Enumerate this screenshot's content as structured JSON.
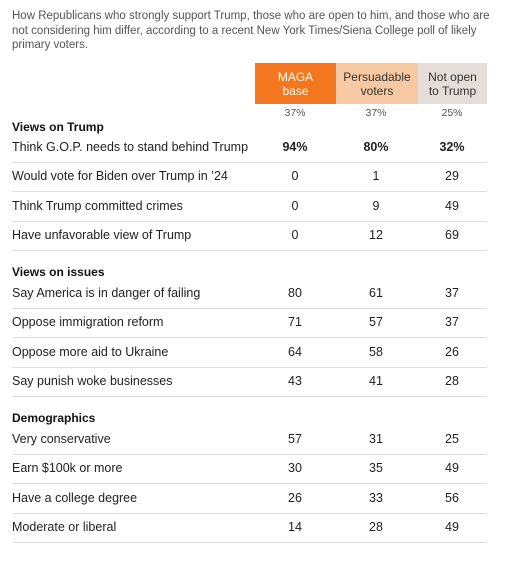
{
  "intro": "How Republicans who strongly support Trump, those who are open to him, and those who are not considering him differ, according to a recent New York Times/Siena College poll of likely primary voters.",
  "columns": [
    {
      "label_line1": "MAGA",
      "label_line2": "base",
      "share": "37%",
      "bg": "#f4771f",
      "fg": "#ffffff"
    },
    {
      "label_line1": "Persuadable",
      "label_line2": "voters",
      "share": "37%",
      "bg": "#f7c9a3",
      "fg": "#333333"
    },
    {
      "label_line1": "Not open",
      "label_line2": "to Trump",
      "share": "25%",
      "bg": "#e4ddd8",
      "fg": "#333333"
    }
  ],
  "sections": [
    {
      "title": "Views on Trump",
      "rows": [
        {
          "label": "Think G.O.P. needs to stand behind Trump",
          "values": [
            "94%",
            "80%",
            "32%"
          ]
        },
        {
          "label": "Would vote for Biden over Trump in ’24",
          "values": [
            "0",
            "1",
            "29"
          ]
        },
        {
          "label": "Think Trump committed crimes",
          "values": [
            "0",
            "9",
            "49"
          ]
        },
        {
          "label": "Have unfavorable view of Trump",
          "values": [
            "0",
            "12",
            "69"
          ]
        }
      ]
    },
    {
      "title": "Views on issues",
      "rows": [
        {
          "label": "Say America is in danger of failing",
          "values": [
            "80",
            "61",
            "37"
          ]
        },
        {
          "label": "Oppose immigration reform",
          "values": [
            "71",
            "57",
            "37"
          ]
        },
        {
          "label": "Oppose more aid to Ukraine",
          "values": [
            "64",
            "58",
            "26"
          ]
        },
        {
          "label": "Say punish woke businesses",
          "values": [
            "43",
            "41",
            "28"
          ]
        }
      ]
    },
    {
      "title": "Demographics",
      "rows": [
        {
          "label": "Very conservative",
          "values": [
            "57",
            "31",
            "25"
          ]
        },
        {
          "label": "Earn $100k or more",
          "values": [
            "30",
            "35",
            "49"
          ]
        },
        {
          "label": "Have a college degree",
          "values": [
            "26",
            "33",
            "56"
          ]
        },
        {
          "label": "Moderate or liberal",
          "values": [
            "14",
            "28",
            "49"
          ]
        }
      ]
    }
  ],
  "chart_data": {
    "type": "table",
    "columns": [
      "MAGA base",
      "Persuadable voters",
      "Not open to Trump"
    ],
    "column_shares": [
      37,
      37,
      25
    ],
    "rows": [
      {
        "section": "Views on Trump",
        "label": "Think G.O.P. needs to stand behind Trump",
        "values": [
          94,
          80,
          32
        ]
      },
      {
        "section": "Views on Trump",
        "label": "Would vote for Biden over Trump in ’24",
        "values": [
          0,
          1,
          29
        ]
      },
      {
        "section": "Views on Trump",
        "label": "Think Trump committed crimes",
        "values": [
          0,
          9,
          49
        ]
      },
      {
        "section": "Views on Trump",
        "label": "Have unfavorable view of Trump",
        "values": [
          0,
          12,
          69
        ]
      },
      {
        "section": "Views on issues",
        "label": "Say America is in danger of failing",
        "values": [
          80,
          61,
          37
        ]
      },
      {
        "section": "Views on issues",
        "label": "Oppose immigration reform",
        "values": [
          71,
          57,
          37
        ]
      },
      {
        "section": "Views on issues",
        "label": "Oppose more aid to Ukraine",
        "values": [
          64,
          58,
          26
        ]
      },
      {
        "section": "Views on issues",
        "label": "Say punish woke businesses",
        "values": [
          43,
          41,
          28
        ]
      },
      {
        "section": "Demographics",
        "label": "Very conservative",
        "values": [
          57,
          31,
          25
        ]
      },
      {
        "section": "Demographics",
        "label": "Earn $100k or more",
        "values": [
          30,
          35,
          49
        ]
      },
      {
        "section": "Demographics",
        "label": "Have a college degree",
        "values": [
          26,
          33,
          56
        ]
      },
      {
        "section": "Demographics",
        "label": "Moderate or liberal",
        "values": [
          14,
          28,
          49
        ]
      }
    ]
  }
}
